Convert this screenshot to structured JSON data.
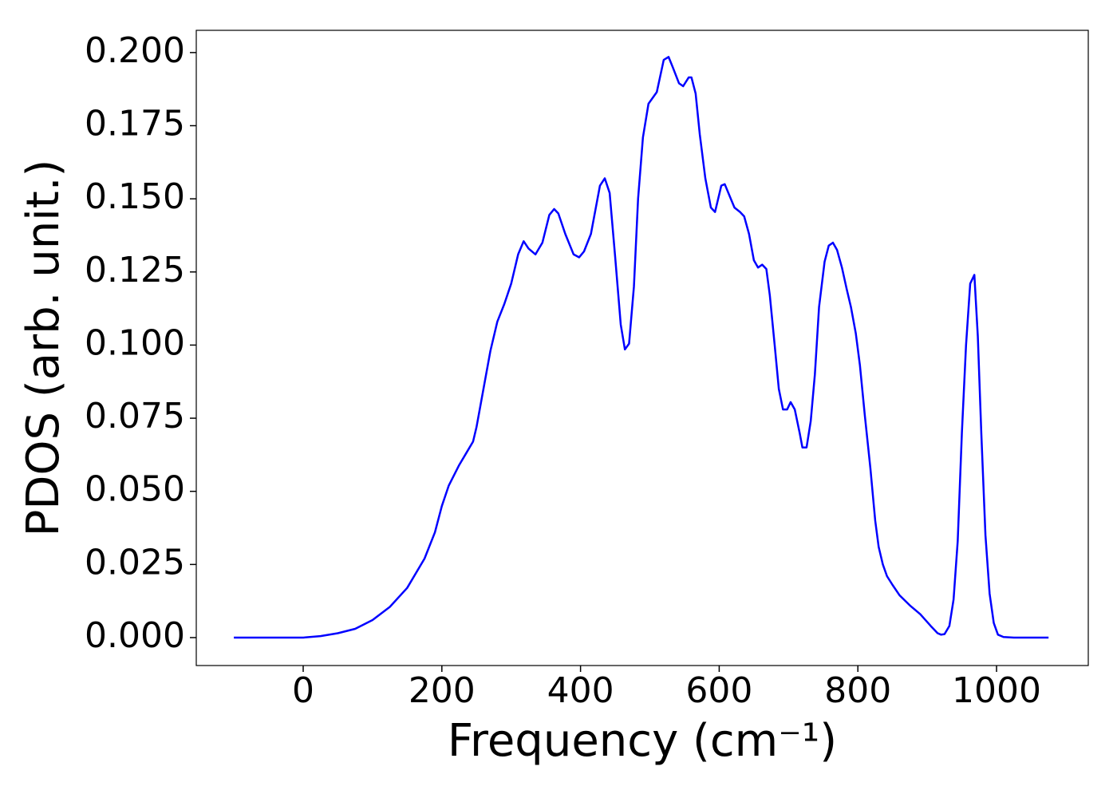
{
  "chart_data": {
    "type": "line",
    "xlabel": "Frequency (cm⁻¹)",
    "ylabel": "PDOS (arb. unit.)",
    "x": [
      -100,
      -50,
      0,
      25,
      50,
      75,
      100,
      125,
      150,
      175,
      190,
      200,
      210,
      225,
      235,
      245,
      250,
      260,
      270,
      280,
      290,
      300,
      310,
      318,
      325,
      335,
      345,
      355,
      362,
      368,
      378,
      390,
      398,
      405,
      415,
      428,
      435,
      442,
      450,
      458,
      464,
      470,
      477,
      483,
      490,
      498,
      510,
      520,
      527,
      533,
      542,
      548,
      556,
      560,
      566,
      572,
      580,
      588,
      594,
      603,
      608,
      615,
      622,
      630,
      636,
      643,
      650,
      656,
      662,
      668,
      673,
      680,
      686,
      692,
      698,
      703,
      709,
      716,
      720,
      726,
      732,
      738,
      744,
      752,
      758,
      764,
      770,
      777,
      784,
      790,
      797,
      803,
      810,
      818,
      825,
      830,
      836,
      842,
      850,
      860,
      875,
      890,
      905,
      915,
      920,
      925,
      932,
      938,
      944,
      950,
      956,
      962,
      968,
      973,
      978,
      984,
      990,
      996,
      1002,
      1010,
      1025,
      1050,
      1075
    ],
    "series": [
      {
        "name": "PDOS",
        "color": "#0000ff",
        "values": [
          0,
          0,
          0,
          0.0005,
          0.0015,
          0.003,
          0.006,
          0.0105,
          0.017,
          0.027,
          0.036,
          0.045,
          0.052,
          0.059,
          0.063,
          0.067,
          0.072,
          0.085,
          0.098,
          0.108,
          0.114,
          0.121,
          0.131,
          0.1355,
          0.133,
          0.131,
          0.135,
          0.1445,
          0.1465,
          0.145,
          0.138,
          0.131,
          0.13,
          0.132,
          0.138,
          0.1545,
          0.157,
          0.152,
          0.13,
          0.107,
          0.0985,
          0.1005,
          0.12,
          0.15,
          0.171,
          0.1825,
          0.1865,
          0.1975,
          0.1985,
          0.195,
          0.1895,
          0.1885,
          0.1915,
          0.1915,
          0.186,
          0.172,
          0.157,
          0.147,
          0.1455,
          0.1545,
          0.155,
          0.151,
          0.147,
          0.1455,
          0.144,
          0.138,
          0.129,
          0.1265,
          0.1275,
          0.126,
          0.117,
          0.1,
          0.085,
          0.078,
          0.078,
          0.0805,
          0.078,
          0.07,
          0.065,
          0.065,
          0.074,
          0.09,
          0.113,
          0.1285,
          0.134,
          0.135,
          0.1325,
          0.1265,
          0.119,
          0.113,
          0.104,
          0.093,
          0.076,
          0.058,
          0.04,
          0.031,
          0.025,
          0.021,
          0.018,
          0.0145,
          0.011,
          0.008,
          0.004,
          0.0015,
          0.001,
          0.0012,
          0.004,
          0.013,
          0.033,
          0.07,
          0.1,
          0.121,
          0.124,
          0.103,
          0.07,
          0.035,
          0.015,
          0.005,
          0.001,
          0.0002,
          0,
          0,
          0
        ]
      }
    ],
    "xlim": [
      -154.2,
      1132.3
    ],
    "ylim": [
      -0.00955,
      0.2076
    ],
    "xticks": [
      0,
      200,
      400,
      600,
      800,
      1000
    ],
    "yticks": [
      {
        "value": 0,
        "label": "0.000"
      },
      {
        "value": 0.025,
        "label": "0.025"
      },
      {
        "value": 0.05,
        "label": "0.050"
      },
      {
        "value": 0.075,
        "label": "0.075"
      },
      {
        "value": 0.1,
        "label": "0.100"
      },
      {
        "value": 0.125,
        "label": "0.125"
      },
      {
        "value": 0.15,
        "label": "0.150"
      },
      {
        "value": 0.175,
        "label": "0.175"
      },
      {
        "value": 0.2,
        "label": "0.200"
      }
    ],
    "grid": false
  }
}
